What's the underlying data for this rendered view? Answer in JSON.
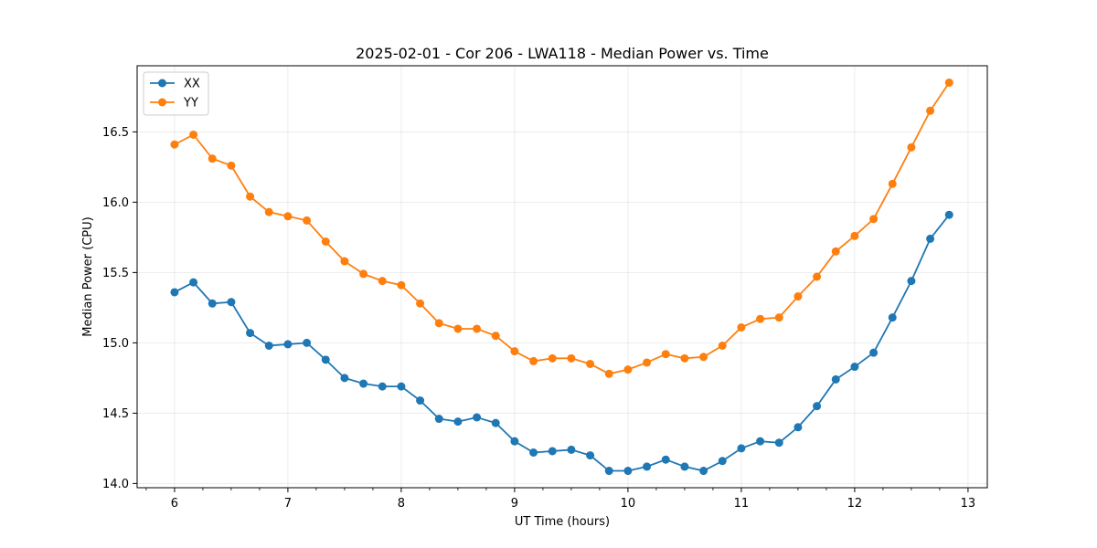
{
  "chart_data": {
    "type": "line",
    "title": "2025-02-01 - Cor 206 - LWA118 - Median Power vs. Time",
    "xlabel": "UT Time (hours)",
    "ylabel": "Median Power (CPU)",
    "xlim": [
      5.67,
      13.17
    ],
    "ylim": [
      13.97,
      16.97
    ],
    "xticks": [
      6,
      7,
      8,
      9,
      10,
      11,
      12,
      13
    ],
    "yticks": [
      14.0,
      14.5,
      15.0,
      15.5,
      16.0,
      16.5
    ],
    "ytick_labels": [
      "14.0",
      "14.5",
      "15.0",
      "15.5",
      "16.0",
      "16.5"
    ],
    "grid": true,
    "legend_position": "top-left",
    "x": [
      6.0,
      6.1667,
      6.3333,
      6.5,
      6.6667,
      6.8333,
      7.0,
      7.1667,
      7.3333,
      7.5,
      7.6667,
      7.8333,
      8.0,
      8.1667,
      8.3333,
      8.5,
      8.6667,
      8.8333,
      9.0,
      9.1667,
      9.3333,
      9.5,
      9.6667,
      9.8333,
      10.0,
      10.1667,
      10.3333,
      10.5,
      10.6667,
      10.8333,
      11.0,
      11.1667,
      11.3333,
      11.5,
      11.6667,
      11.8333,
      12.0,
      12.1667,
      12.3333,
      12.5,
      12.6667,
      12.8333
    ],
    "series": [
      {
        "name": "XX",
        "color": "#1f77b4",
        "values": [
          15.36,
          15.43,
          15.28,
          15.29,
          15.07,
          14.98,
          14.99,
          15.0,
          14.88,
          14.75,
          14.71,
          14.69,
          14.69,
          14.59,
          14.46,
          14.44,
          14.47,
          14.43,
          14.3,
          14.22,
          14.23,
          14.24,
          14.2,
          14.09,
          14.09,
          14.12,
          14.17,
          14.12,
          14.09,
          14.16,
          14.25,
          14.3,
          14.29,
          14.4,
          14.55,
          14.74,
          14.83,
          14.93,
          15.18,
          15.44,
          15.74,
          15.91
        ]
      },
      {
        "name": "YY",
        "color": "#ff7f0e",
        "values": [
          16.41,
          16.48,
          16.31,
          16.26,
          16.04,
          15.93,
          15.9,
          15.87,
          15.72,
          15.58,
          15.49,
          15.44,
          15.41,
          15.28,
          15.14,
          15.1,
          15.1,
          15.05,
          14.94,
          14.87,
          14.89,
          14.89,
          14.85,
          14.78,
          14.81,
          14.86,
          14.92,
          14.89,
          14.9,
          14.98,
          15.11,
          15.17,
          15.18,
          15.33,
          15.47,
          15.65,
          15.76,
          15.88,
          16.13,
          16.39,
          16.65,
          16.85
        ]
      }
    ]
  }
}
